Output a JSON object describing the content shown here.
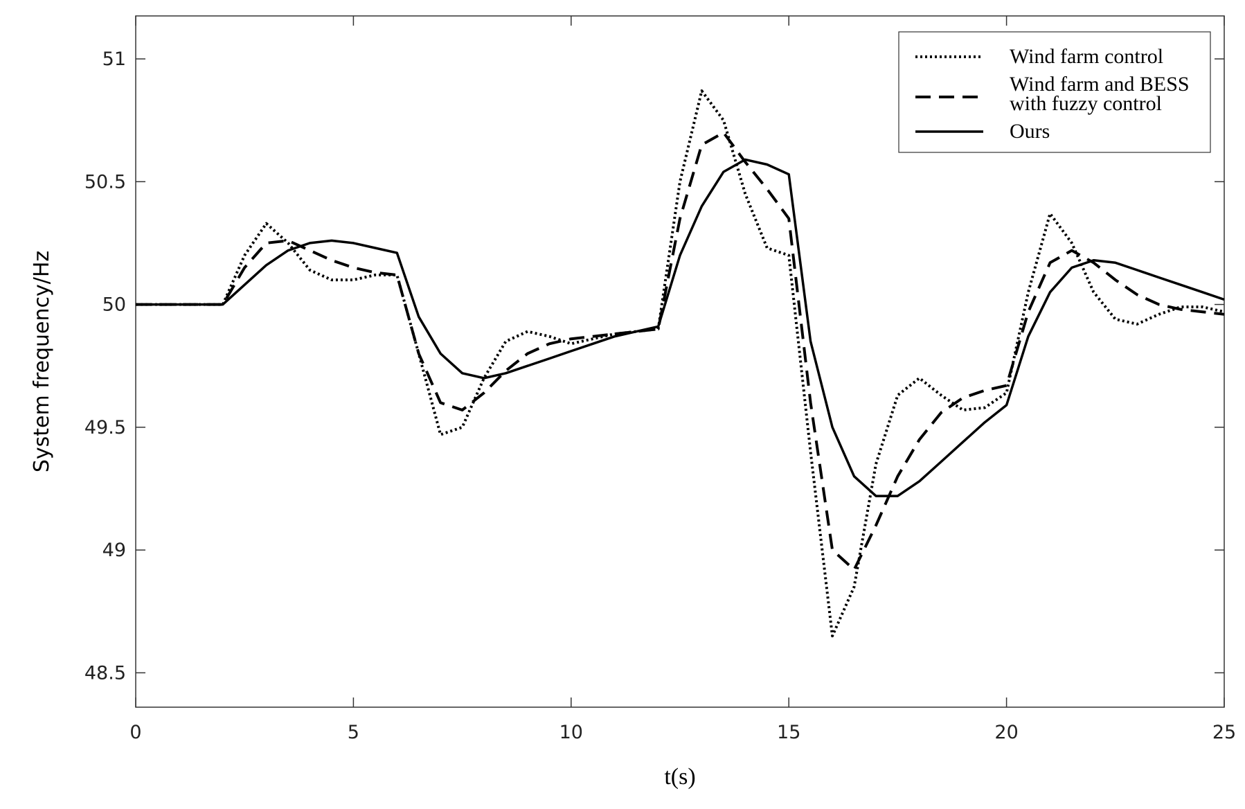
{
  "chart_data": {
    "type": "line",
    "xlabel": "t(s)",
    "ylabel": "System frequency/Hz",
    "x": [
      0,
      0.5,
      1,
      1.5,
      2,
      2.5,
      3,
      3.5,
      4,
      4.5,
      5,
      5.5,
      6,
      6.5,
      7,
      7.5,
      8,
      8.5,
      9,
      9.5,
      10,
      10.5,
      11,
      11.5,
      12,
      12.5,
      13,
      13.5,
      14,
      14.5,
      15,
      15.5,
      16,
      16.5,
      17,
      17.5,
      18,
      18.5,
      19,
      19.5,
      20,
      20.5,
      21,
      21.5,
      22,
      22.5,
      23,
      23.5,
      24,
      24.5,
      25
    ],
    "series": [
      {
        "name": "Wind farm control",
        "color": "#000000",
        "line_style": "dotted",
        "values": [
          50,
          50,
          50,
          50,
          50,
          50.2,
          50.33,
          50.25,
          50.14,
          50.1,
          50.1,
          50.12,
          50.12,
          49.8,
          49.47,
          49.5,
          49.7,
          49.85,
          49.89,
          49.87,
          49.84,
          49.86,
          49.88,
          49.89,
          49.9,
          50.5,
          50.87,
          50.75,
          50.45,
          50.23,
          50.2,
          49.4,
          48.65,
          48.85,
          49.35,
          49.63,
          49.7,
          49.63,
          49.57,
          49.58,
          49.64,
          50.05,
          50.37,
          50.25,
          50.05,
          49.94,
          49.92,
          49.96,
          49.99,
          49.99,
          49.97
        ]
      },
      {
        "name": "Wind farm and BESS\nwith fuzzy control",
        "color": "#000000",
        "line_style": "dashed",
        "values": [
          50,
          50,
          50,
          50,
          50,
          50.15,
          50.25,
          50.26,
          50.22,
          50.18,
          50.15,
          50.13,
          50.12,
          49.8,
          49.6,
          49.57,
          49.64,
          49.73,
          49.8,
          49.84,
          49.86,
          49.87,
          49.88,
          49.89,
          49.9,
          50.35,
          50.65,
          50.7,
          50.58,
          50.47,
          50.35,
          49.6,
          49.0,
          48.92,
          49.1,
          49.3,
          49.45,
          49.56,
          49.62,
          49.65,
          49.67,
          49.97,
          50.17,
          50.22,
          50.17,
          50.1,
          50.04,
          50.0,
          49.98,
          49.97,
          49.96
        ]
      },
      {
        "name": "Ours",
        "color": "#000000",
        "line_style": "solid",
        "values": [
          50,
          50,
          50,
          50,
          50,
          50.08,
          50.16,
          50.22,
          50.25,
          50.26,
          50.25,
          50.23,
          50.21,
          49.95,
          49.8,
          49.72,
          49.7,
          49.72,
          49.75,
          49.78,
          49.81,
          49.84,
          49.87,
          49.89,
          49.91,
          50.2,
          50.4,
          50.54,
          50.59,
          50.57,
          50.53,
          49.85,
          49.5,
          49.3,
          49.22,
          49.22,
          49.28,
          49.36,
          49.44,
          49.52,
          49.59,
          49.87,
          50.05,
          50.15,
          50.18,
          50.17,
          50.14,
          50.11,
          50.08,
          50.05,
          50.02
        ]
      }
    ],
    "xlim": [
      0,
      25
    ],
    "xticks": [
      0,
      5,
      10,
      15,
      20,
      25
    ],
    "ylim": [
      48.36,
      51.175
    ],
    "yticks": [
      48.5,
      49,
      49.5,
      50,
      50.5,
      51
    ],
    "grid": false,
    "legend": "upper right"
  }
}
